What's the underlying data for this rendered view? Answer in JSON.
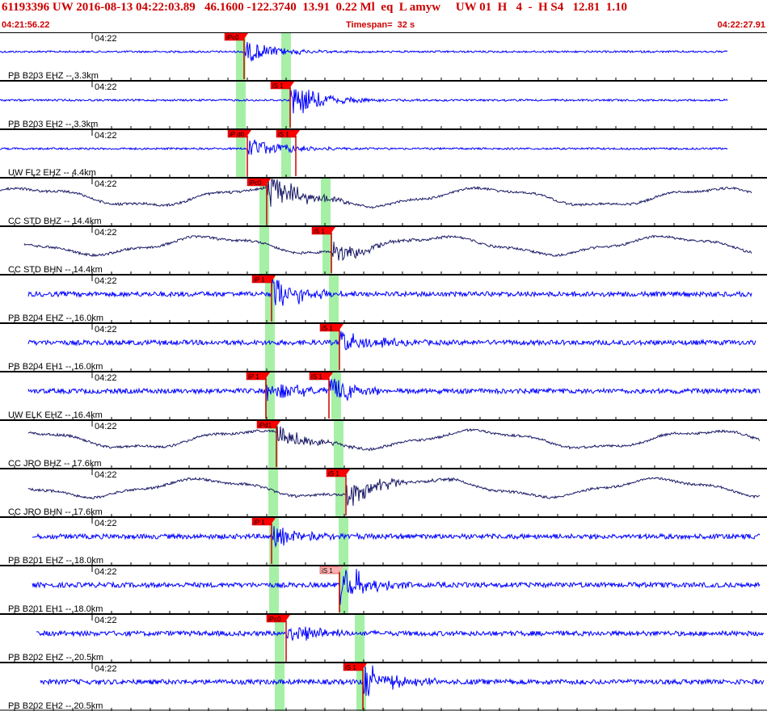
{
  "header": {
    "title": "61193396 UW 2016-08-13 04:22:03.89   46.1600 -122.3740  13.91  0.22 Ml  eq  L amyw     UW 01  H   4  -  H S4   12.81  1.10",
    "start_time": "04:21:56.22",
    "timespan": "Timespan=  32 s",
    "end_time": "04:22:27.91"
  },
  "colors": {
    "accent": "#cc0000",
    "trace_blue": "#0000ff",
    "trace_dark": "#1a1a66",
    "pick_bg": "#ff0000",
    "pick_bg_light": "#ffb0b0",
    "window_green": "#a6f0a6"
  },
  "traces": [
    {
      "label": "PB B203 EHZ -- 3.3km",
      "time": "04:22",
      "color": "blue",
      "picks": [
        {
          "label": "iPc0",
          "x": 302,
          "light": false
        }
      ],
      "green": [
        297,
        353
      ]
    },
    {
      "label": "PB B203 EH2 -- 3.3km",
      "time": "04:22",
      "color": "blue",
      "picks": [
        {
          "label": "iS 1",
          "x": 359,
          "light": false
        }
      ],
      "green": [
        297,
        353
      ]
    },
    {
      "label": "UW FL2 EHZ -- 4.4km",
      "time": "04:22",
      "color": "blue",
      "picks": [
        {
          "label": "iP d0",
          "x": 306,
          "light": false
        },
        {
          "label": "iS 1",
          "x": 366,
          "light": false
        }
      ],
      "green": [
        297,
        353
      ]
    },
    {
      "label": "CC STD BHZ -- 14.4km",
      "time": "04:22",
      "color": "dark",
      "picks": [
        {
          "label": "iPc0",
          "x": 330,
          "light": false
        }
      ],
      "green": [
        326,
        402
      ]
    },
    {
      "label": "CC STD BHN -- 14.4km",
      "time": "04:22",
      "color": "dark",
      "picks": [
        {
          "label": "iS 1",
          "x": 410,
          "light": false
        }
      ],
      "green": [
        326,
        404
      ]
    },
    {
      "label": "PB B204 EHZ -- 16.0km",
      "time": "04:22",
      "color": "blue",
      "picks": [
        {
          "label": "iP 1",
          "x": 336,
          "light": false
        }
      ],
      "green": [
        333,
        412
      ]
    },
    {
      "label": "PB B204 EH1 -- 16.0km",
      "time": "04:22",
      "color": "blue",
      "picks": [
        {
          "label": "iS 1",
          "x": 420,
          "light": false
        }
      ],
      "green": [
        333,
        413
      ]
    },
    {
      "label": "UW ELK EHZ -- 16.4km",
      "time": "04:22",
      "color": "blue",
      "picks": [
        {
          "label": "iP 1",
          "x": 329,
          "light": false
        },
        {
          "label": "iS 1",
          "x": 407,
          "light": false
        }
      ],
      "green": [
        333,
        415
      ]
    },
    {
      "label": "CC JRO BHZ -- 17.6km",
      "time": "04:22",
      "color": "dark",
      "picks": [
        {
          "label": "iPd1",
          "x": 342,
          "light": false
        }
      ],
      "green": [
        337,
        418
      ]
    },
    {
      "label": "CC JRO BHN -- 17.6km",
      "time": "04:22",
      "color": "dark",
      "picks": [
        {
          "label": "iS 1",
          "x": 428,
          "light": false
        }
      ],
      "green": [
        337,
        420
      ]
    },
    {
      "label": "PB B201 EHZ -- 18.0km",
      "time": "04:22",
      "color": "blue",
      "picks": [
        {
          "label": "iP 1",
          "x": 336,
          "light": false
        }
      ],
      "green": [
        338,
        424
      ]
    },
    {
      "label": "PB B201 EH1 -- 18.0km",
      "time": "04:22",
      "color": "blue",
      "picks": [
        {
          "label": "iS 1",
          "x": 420,
          "light": true
        }
      ],
      "green": [
        338,
        424
      ]
    },
    {
      "label": "PB B202 EHZ -- 20.5km",
      "time": "04:22",
      "color": "blue",
      "picks": [
        {
          "label": "iPc0",
          "x": 354,
          "light": false
        }
      ],
      "green": [
        345,
        444
      ]
    },
    {
      "label": "PB B202 EH2 -- 20.5km",
      "time": "04:22",
      "color": "blue",
      "picks": [
        {
          "label": "iS 1",
          "x": 449,
          "light": false
        }
      ],
      "green": [
        345,
        446
      ]
    }
  ]
}
